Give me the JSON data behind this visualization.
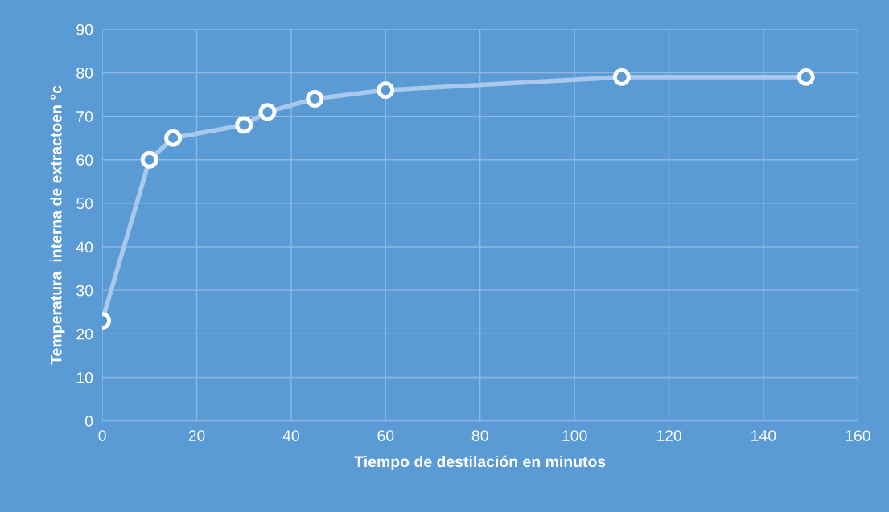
{
  "chart_data": {
    "type": "line",
    "xlabel": "Tiempo de destilación en minutos",
    "ylabel": "Temperatura  interna de extractoen °c",
    "x": [
      0,
      10,
      15,
      30,
      35,
      45,
      60,
      110,
      149
    ],
    "series": [
      {
        "color": "#a9c8ec",
        "values": [
          23,
          60,
          65,
          68,
          71,
          74,
          76,
          79,
          79
        ]
      }
    ],
    "xlim": [
      0,
      160
    ],
    "xticks": [
      0,
      20,
      40,
      60,
      80,
      100,
      120,
      140,
      160
    ],
    "ylim": [
      0,
      90
    ],
    "yticks": [
      0,
      10,
      20,
      30,
      40,
      50,
      60,
      70,
      80,
      90
    ],
    "grid": true,
    "marker": "circle",
    "line_style": "solid",
    "legend": false
  }
}
